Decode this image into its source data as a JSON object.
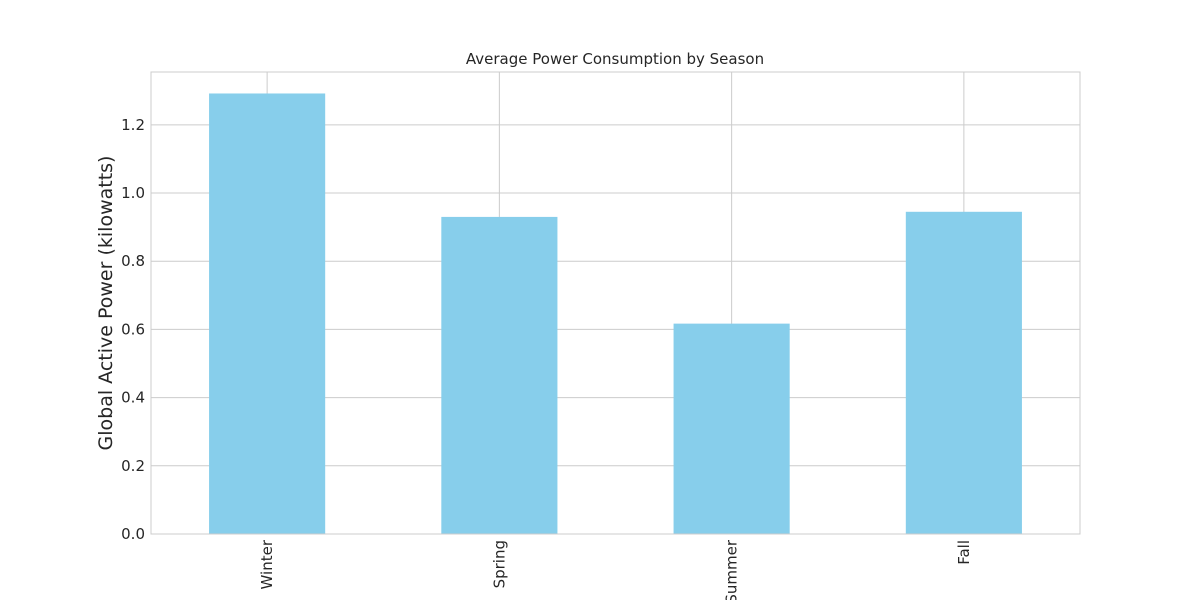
{
  "chart_data": {
    "type": "bar",
    "title": "Average Power Consumption by Season",
    "xlabel": "",
    "ylabel": "Global Active Power (kilowatts)",
    "categories": [
      "Winter",
      "Spring",
      "Summer",
      "Fall"
    ],
    "values": [
      1.292,
      0.93,
      0.617,
      0.945
    ],
    "ylim": [
      0,
      1.355
    ],
    "yticks": [
      0.0,
      0.2,
      0.4,
      0.6,
      0.8,
      1.0,
      1.2
    ],
    "ytick_labels": [
      "0.0",
      "0.2",
      "0.4",
      "0.6",
      "0.8",
      "1.0",
      "1.2"
    ],
    "grid": true,
    "legend": "none",
    "bar_color": "#87ceeb",
    "grid_color": "#cccccc",
    "axis_color": "#cccccc"
  }
}
